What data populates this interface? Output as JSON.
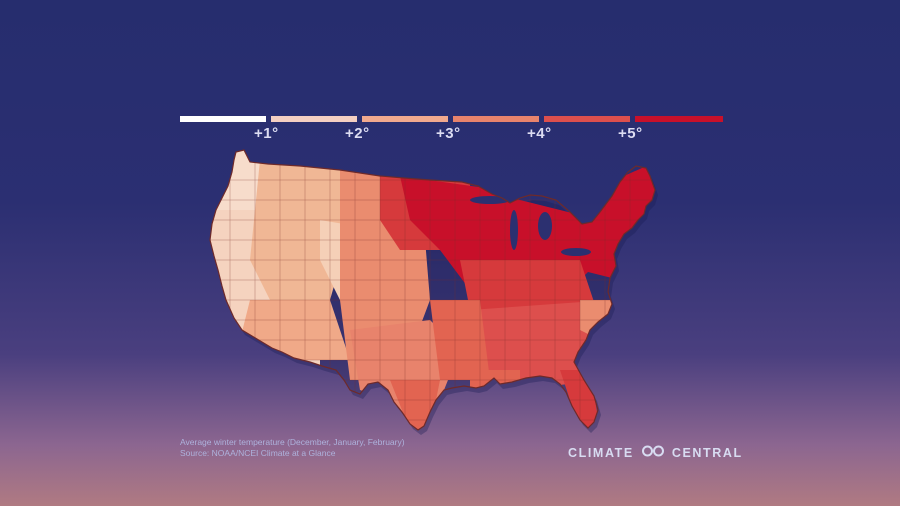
{
  "legend": {
    "colors": [
      "#ffffff",
      "#f4cfc2",
      "#f1a98e",
      "#e8836c",
      "#dd4f4d",
      "#c8102a"
    ],
    "ticks": [
      "+1°",
      "+2°",
      "+3°",
      "+4°",
      "+5°"
    ]
  },
  "map": {
    "colors": {
      "c1": "#f5d3bf",
      "c2": "#f0b795",
      "c3": "#ea8c6f",
      "c4": "#e26451",
      "c5": "#d63a3c",
      "c6": "#c8102a"
    },
    "border_color": "#6e2a2a"
  },
  "caption": {
    "line1": "Average winter temperature (December, January, February)",
    "line2": "Source: NOAA/NCEI Climate at a Glance"
  },
  "brand": {
    "left": "CLIMATE",
    "right": "CENTRAL",
    "logo_icon": "double-loop-logo-icon"
  }
}
